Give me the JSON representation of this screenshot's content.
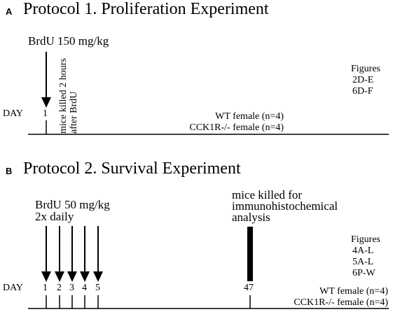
{
  "panel_a": {
    "letter": "A",
    "title": "Protocol 1. Proliferation Experiment",
    "dose": "BrdU 150 mg/kg",
    "note_line1": "mice killed 2 hours",
    "note_line2": "after BrdU",
    "day_label": "DAY",
    "day_ticks": [
      "1"
    ],
    "figures_title": "Figures",
    "figures": [
      "2D-E",
      "6D-F"
    ],
    "groups": [
      "WT female (n=4)",
      "CCK1R-/- female (n=4)"
    ]
  },
  "panel_b": {
    "letter": "B",
    "title": "Protocol 2. Survival Experiment",
    "dose_line1": "BrdU 50 mg/kg",
    "dose_line2": "2x daily",
    "killed_line1": "mice killed for",
    "killed_line2": "immunohistochemical",
    "killed_line3": "analysis",
    "day_label": "DAY",
    "day_ticks": [
      "1",
      "2",
      "3",
      "4",
      "5"
    ],
    "end_day": "47",
    "figures_title": "Figures",
    "figures": [
      "4A-L",
      "5A-L",
      "6P-W"
    ],
    "groups": [
      "WT female (n=4)",
      "CCK1R-/- female (n=4)"
    ]
  }
}
